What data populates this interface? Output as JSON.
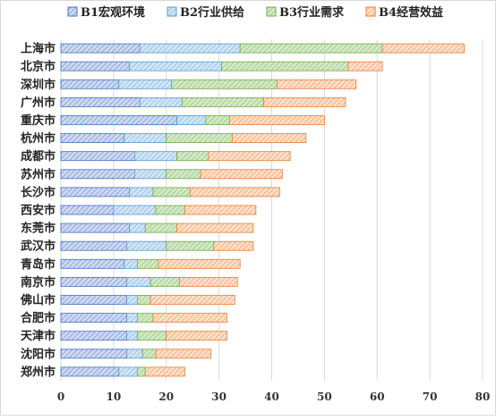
{
  "chart_data": {
    "type": "bar",
    "orientation": "horizontal",
    "stacked": true,
    "title": "",
    "xlabel": "",
    "ylabel": "",
    "xlim": [
      0,
      80
    ],
    "xticks": [
      0,
      10,
      20,
      30,
      40,
      50,
      60,
      70,
      80
    ],
    "grid": "vertical",
    "legend_position": "top",
    "categories": [
      "上海市",
      "北京市",
      "深圳市",
      "广州市",
      "重庆市",
      "杭州市",
      "成都市",
      "苏州市",
      "长沙市",
      "西安市",
      "东莞市",
      "武汉市",
      "青岛市",
      "南京市",
      "佛山市",
      "合肥市",
      "天津市",
      "沈阳市",
      "郑州市"
    ],
    "series": [
      {
        "name": "B1宏观环境",
        "color": "#4472C4",
        "fill": "#CFD9F0",
        "values": [
          15,
          13,
          11,
          15,
          22,
          12,
          14,
          14,
          13,
          10,
          13,
          12.5,
          12,
          12.5,
          12.5,
          12.5,
          12.5,
          12.5,
          11
        ]
      },
      {
        "name": "B2行业供给",
        "color": "#5B9BD5",
        "fill": "#D2E6F5",
        "values": [
          19,
          17.5,
          10,
          8,
          5.5,
          8,
          8,
          6,
          4.5,
          8,
          3,
          7.5,
          2.5,
          4.5,
          2,
          2,
          2,
          3,
          3.5
        ]
      },
      {
        "name": "B3行业需求",
        "color": "#70AD47",
        "fill": "#D5E9C9",
        "values": [
          27,
          24,
          20,
          15.5,
          4.5,
          12.5,
          6,
          6.5,
          7,
          5.5,
          6,
          9,
          4,
          5.5,
          2.5,
          3,
          5.5,
          2.5,
          1.5
        ]
      },
      {
        "name": "B4经营效益",
        "color": "#ED7D31",
        "fill": "#FBE0CC",
        "values": [
          15.5,
          6.5,
          15,
          15.5,
          18,
          14,
          15.5,
          15.5,
          17,
          13.5,
          14.5,
          7.5,
          15.5,
          11,
          16,
          14,
          11.5,
          10.5,
          7.5
        ]
      }
    ]
  }
}
